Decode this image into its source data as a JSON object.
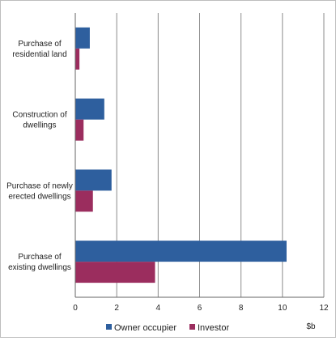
{
  "chart_data": {
    "type": "bar",
    "orientation": "horizontal",
    "categories": [
      [
        "Purchase of",
        "residential land"
      ],
      [
        "Construction of",
        "dwellings"
      ],
      [
        "Purchase of newly",
        "erected dwellings"
      ],
      [
        "Purchase of",
        "existing dwellings"
      ]
    ],
    "series": [
      {
        "name": "Owner occupier",
        "color": "#2e5f9e",
        "values": [
          0.7,
          1.4,
          1.75,
          10.2
        ]
      },
      {
        "name": "Investor",
        "color": "#9b2d5e",
        "values": [
          0.2,
          0.4,
          0.85,
          3.85
        ]
      }
    ],
    "xlim": [
      0,
      12
    ],
    "xticks": [
      0,
      2,
      4,
      6,
      8,
      10,
      12
    ],
    "xlabel": "$b",
    "ylabel": "",
    "title": "",
    "grid": "vertical",
    "legend": "bottom-center"
  }
}
